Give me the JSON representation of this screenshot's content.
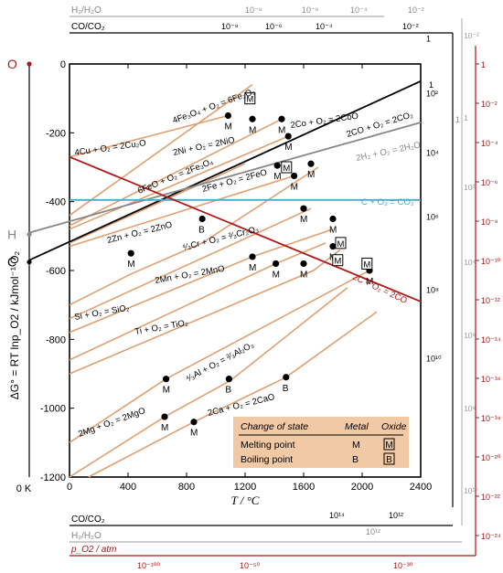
{
  "chart_data": {
    "type": "line",
    "xlabel": "T / °C",
    "ylabel": "ΔG° = RT lnp_O2 / kJmol⁻¹ O₂",
    "x_ticks": [
      "0",
      "400",
      "800",
      "1200",
      "1600",
      "2000",
      "2400"
    ],
    "y_ticks": [
      "0",
      "-200",
      "-400",
      "-600",
      "-800",
      "-1000",
      "-1200"
    ],
    "xlim": [
      0,
      2400
    ],
    "ylim": [
      -1200,
      0
    ],
    "abs_zero_label": "0 K",
    "pivot_labels": {
      "O": "O",
      "H": "H",
      "C": "C"
    },
    "colors": {
      "reaction": "#e0a070",
      "carbon": "#000000",
      "hydrogen": "#888888",
      "co_co2_h": "#4aaad0",
      "c_co": "#b01818",
      "scale": "#a01818"
    },
    "series": [
      {
        "name": "4Cu + O₂ = 2Cu₂O",
        "x": [
          0,
          1084
        ],
        "y": [
          -270,
          -150
        ]
      },
      {
        "name": "4Fe₃O₄ + O₂ = 6Fe₂O₃",
        "x": [
          0,
          1250
        ],
        "y": [
          -440,
          -60
        ]
      },
      {
        "name": "2Ni + O₂ = 2NiO",
        "x": [
          0,
          1450
        ],
        "y": [
          -470,
          -160
        ]
      },
      {
        "name": "2Co + O₂ = 2CoO",
        "x": [
          0,
          1495
        ],
        "y": [
          -480,
          -210
        ]
      },
      {
        "name": "6FeO + O₂ = 2Fe₃O₄",
        "x": [
          0,
          1200
        ],
        "y": [
          -520,
          -290
        ]
      },
      {
        "name": "2Fe + O₂ = 2FeO",
        "x": [
          0,
          1535
        ],
        "y": [
          -530,
          -325
        ]
      },
      {
        "name": "2Zn + O₂ = 2ZnO",
        "x": [
          0,
          420,
          907,
          1700
        ],
        "y": [
          -700,
          -610,
          -520,
          -300
        ]
      },
      {
        "name": "⁴⁄₃Cr + O₂ = ²⁄₃Cr₂O₃",
        "x": [
          0,
          1650
        ],
        "y": [
          -740,
          -420
        ]
      },
      {
        "name": "2Mn + O₂ = 2MnO",
        "x": [
          0,
          1250,
          1800
        ],
        "y": [
          -780,
          -560,
          -480
        ]
      },
      {
        "name": "Si + O₂ = SiO₂",
        "x": [
          0,
          1410,
          1750
        ],
        "y": [
          -860,
          -580,
          -520
        ]
      },
      {
        "name": "Ti + O₂ = TiO₂",
        "x": [
          0,
          1668,
          1850
        ],
        "y": [
          -900,
          -600,
          -540
        ]
      },
      {
        "name": "⁴⁄₃Al + O₂ = ²⁄₃Al₂O₃",
        "x": [
          0,
          660,
          2050
        ],
        "y": [
          -1100,
          -915,
          -600
        ]
      },
      {
        "name": "2Mg + O₂ = 2MgO",
        "x": [
          0,
          650,
          1100,
          1900
        ],
        "y": [
          -1200,
          -1025,
          -920,
          -650
        ]
      },
      {
        "name": "2Ca + O₂ = 2CaO",
        "x": [
          130,
          850,
          1480,
          2100
        ],
        "y": [
          -1200,
          -1040,
          -910,
          -720
        ]
      },
      {
        "name": "2CO + O₂ = 2CO₂",
        "x": [
          -273,
          2400
        ],
        "y": [
          -570,
          -50
        ]
      },
      {
        "name": "2H₂ + O₂ = 2H₂O",
        "x": [
          -273,
          2400
        ],
        "y": [
          -490,
          -170
        ]
      },
      {
        "name": "C + O₂ = CO₂",
        "x": [
          0,
          2400
        ],
        "y": [
          -395,
          -395
        ]
      },
      {
        "name": "2C + O₂ = 2CO",
        "x": [
          0,
          2400
        ],
        "y": [
          -270,
          -690
        ]
      }
    ],
    "points": [
      {
        "x": 1084,
        "y": -150,
        "label": "M"
      },
      {
        "x": 1250,
        "y": -160,
        "label": "M"
      },
      {
        "x": 1450,
        "y": -160,
        "label": "M"
      },
      {
        "x": 1495,
        "y": -210,
        "label": "M"
      },
      {
        "x": 1420,
        "y": -295,
        "label": "M"
      },
      {
        "x": 1535,
        "y": -325,
        "label": "M"
      },
      {
        "x": 1650,
        "y": -290,
        "label": "M"
      },
      {
        "x": 907,
        "y": -450,
        "label": "B"
      },
      {
        "x": 420,
        "y": -550,
        "label": "M"
      },
      {
        "x": 1600,
        "y": -420,
        "label": "M"
      },
      {
        "x": 1800,
        "y": -450,
        "label": "M"
      },
      {
        "x": 1250,
        "y": -560,
        "label": "M"
      },
      {
        "x": 1410,
        "y": -580,
        "label": "M"
      },
      {
        "x": 1600,
        "y": -580,
        "label": "M"
      },
      {
        "x": 1800,
        "y": -530,
        "label": "M"
      },
      {
        "x": 2050,
        "y": -600,
        "label": "M"
      },
      {
        "x": 660,
        "y": -915,
        "label": "M"
      },
      {
        "x": 1090,
        "y": -915,
        "label": "B"
      },
      {
        "x": 1480,
        "y": -910,
        "label": "B"
      },
      {
        "x": 650,
        "y": -1025,
        "label": "M"
      },
      {
        "x": 850,
        "y": -1040,
        "label": "M"
      }
    ],
    "boxed_points": [
      {
        "x": 1230,
        "y": -100,
        "label": "M"
      },
      {
        "x": 1480,
        "y": -300,
        "label": "M"
      },
      {
        "x": 1830,
        "y": -570,
        "label": "M"
      },
      {
        "x": 1850,
        "y": -520,
        "label": "M"
      },
      {
        "x": 2030,
        "y": -580,
        "label": "M"
      }
    ],
    "legend": {
      "header": [
        "Change of state",
        "Metal",
        "Oxide"
      ],
      "rows": [
        {
          "label": "Melting point",
          "metal": "M",
          "oxide": "M"
        },
        {
          "label": "Boiling point",
          "metal": "B",
          "oxide": "B"
        }
      ],
      "bg": "#f2c9a5"
    },
    "scales": {
      "top_h2_label": "H₂/H₂O",
      "top_h2_ticks": [
        "10⁻⁸",
        "10⁻⁶",
        "10⁻⁴",
        "10⁻²"
      ],
      "top_co_label": "CO/CO₂",
      "top_co_ticks": [
        "10⁻⁸",
        "10⁻⁶",
        "10⁻⁴",
        "10⁻²"
      ],
      "right_co_ticks": [
        "1",
        "10²",
        "10⁴",
        "10⁶",
        "10⁸",
        "10¹⁰"
      ],
      "right_h2_ticks": [
        "10⁻²",
        "1",
        "10²",
        "10⁴",
        "10⁶",
        "10⁸",
        "10¹⁰"
      ],
      "right_po2_ticks": [
        "1",
        "10⁻²",
        "10⁻⁴",
        "10⁻⁶",
        "10⁻⁸",
        "10⁻¹⁰",
        "10⁻¹²",
        "10⁻¹⁴",
        "10⁻¹⁶",
        "10⁻¹⁸",
        "10⁻²⁰",
        "10⁻²²",
        "10⁻²⁴"
      ],
      "right_inner_labels": [
        "1",
        "1"
      ],
      "bottom_co_label": "CO/CO₂",
      "bottom_co_ticks": [
        "10¹⁴",
        "10¹²"
      ],
      "bottom_h2_label": "H₂/H₂O",
      "bottom_h2_ticks": [
        "10¹²"
      ],
      "bottom_po2_label": "p_O2 / atm",
      "bottom_po2_ticks": [
        "10⁻¹⁰⁰",
        "10⁻⁵⁰",
        "10⁻³⁰"
      ]
    }
  }
}
